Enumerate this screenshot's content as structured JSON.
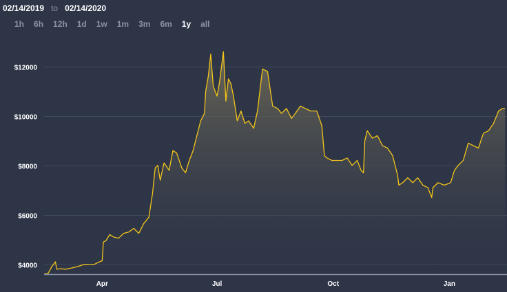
{
  "header": {
    "date_from": "02/14/2019",
    "date_sep": "to",
    "date_to": "02/14/2020"
  },
  "ranges": [
    {
      "label": "1h",
      "active": false
    },
    {
      "label": "6h",
      "active": false
    },
    {
      "label": "12h",
      "active": false
    },
    {
      "label": "1d",
      "active": false
    },
    {
      "label": "1w",
      "active": false
    },
    {
      "label": "1m",
      "active": false
    },
    {
      "label": "3m",
      "active": false
    },
    {
      "label": "6m",
      "active": false
    },
    {
      "label": "1y",
      "active": true
    },
    {
      "label": "all",
      "active": false
    }
  ],
  "colors": {
    "background": "#2d3547",
    "line": "#f5c518",
    "grid": "#414a5c",
    "baseline": "#8a92a3",
    "text": "#ffffff",
    "muted": "#8b93a5"
  },
  "chart_data": {
    "type": "area",
    "title": "",
    "xlabel": "",
    "ylabel": "",
    "grid": true,
    "ylim": [
      3600,
      12800
    ],
    "y_ticks": [
      {
        "value": 4000,
        "label": "$4000"
      },
      {
        "value": 6000,
        "label": "$6000"
      },
      {
        "value": 8000,
        "label": "$8000"
      },
      {
        "value": 10000,
        "label": "$10000"
      },
      {
        "value": 12000,
        "label": "$12000"
      }
    ],
    "x_ticks": [
      {
        "date": "2019-04-01",
        "label": "Apr"
      },
      {
        "date": "2019-07-01",
        "label": "Jul"
      },
      {
        "date": "2019-10-01",
        "label": "Oct"
      },
      {
        "date": "2020-01-01",
        "label": "Jan"
      }
    ],
    "series": [
      {
        "x": [
          "2019-02-14",
          "2019-02-17",
          "2019-02-19",
          "2019-02-20",
          "2019-02-23",
          "2019-02-24",
          "2019-02-27",
          "2019-03-03",
          "2019-03-07",
          "2019-03-12",
          "2019-03-17",
          "2019-03-22",
          "2019-03-26",
          "2019-03-30",
          "2019-04-01",
          "2019-04-02",
          "2019-04-04",
          "2019-04-07",
          "2019-04-10",
          "2019-04-14",
          "2019-04-18",
          "2019-04-22",
          "2019-04-26",
          "2019-04-30",
          "2019-05-04",
          "2019-05-08",
          "2019-05-11",
          "2019-05-13",
          "2019-05-15",
          "2019-05-17",
          "2019-05-20",
          "2019-05-24",
          "2019-05-27",
          "2019-05-30",
          "2019-06-03",
          "2019-06-06",
          "2019-06-09",
          "2019-06-12",
          "2019-06-15",
          "2019-06-18",
          "2019-06-21",
          "2019-06-22",
          "2019-06-24",
          "2019-06-26",
          "2019-06-28",
          "2019-07-01",
          "2019-07-03",
          "2019-07-06",
          "2019-07-08",
          "2019-07-10",
          "2019-07-12",
          "2019-07-14",
          "2019-07-17",
          "2019-07-20",
          "2019-07-23",
          "2019-07-26",
          "2019-07-30",
          "2019-08-02",
          "2019-08-06",
          "2019-08-10",
          "2019-08-14",
          "2019-08-18",
          "2019-08-21",
          "2019-08-25",
          "2019-08-29",
          "2019-09-01",
          "2019-09-05",
          "2019-09-09",
          "2019-09-13",
          "2019-09-18",
          "2019-09-22",
          "2019-09-24",
          "2019-09-26",
          "2019-09-30",
          "2019-10-04",
          "2019-10-08",
          "2019-10-12",
          "2019-10-16",
          "2019-10-20",
          "2019-10-23",
          "2019-10-25",
          "2019-10-26",
          "2019-10-28",
          "2019-11-01",
          "2019-11-05",
          "2019-11-09",
          "2019-11-13",
          "2019-11-17",
          "2019-11-21",
          "2019-11-22",
          "2019-11-25",
          "2019-11-29",
          "2019-12-03",
          "2019-12-07",
          "2019-12-11",
          "2019-12-15",
          "2019-12-18",
          "2019-12-19",
          "2019-12-23",
          "2019-12-28",
          "2020-01-02",
          "2020-01-05",
          "2020-01-08",
          "2020-01-12",
          "2020-01-16",
          "2020-01-20",
          "2020-01-24",
          "2020-01-28",
          "2020-02-01",
          "2020-02-05",
          "2020-02-09",
          "2020-02-12",
          "2020-02-14"
        ],
        "y": [
          3600,
          3620,
          3800,
          3900,
          4100,
          3800,
          3820,
          3800,
          3840,
          3900,
          3980,
          3990,
          4000,
          4100,
          4140,
          4900,
          4950,
          5200,
          5100,
          5050,
          5250,
          5300,
          5450,
          5250,
          5650,
          5900,
          6900,
          7900,
          8000,
          7400,
          8100,
          7800,
          8600,
          8500,
          7900,
          7700,
          8200,
          8600,
          9200,
          9800,
          10100,
          11000,
          11600,
          12500,
          11200,
          10800,
          11400,
          12600,
          10600,
          11500,
          11300,
          10800,
          9800,
          10200,
          9700,
          9800,
          9500,
          10200,
          11900,
          11800,
          10400,
          10300,
          10100,
          10300,
          9900,
          10100,
          10400,
          10300,
          10200,
          10200,
          9600,
          8400,
          8300,
          8200,
          8200,
          8200,
          8300,
          8000,
          8200,
          7800,
          7700,
          9000,
          9400,
          9100,
          9200,
          8800,
          8700,
          8400,
          7600,
          7200,
          7300,
          7500,
          7300,
          7500,
          7200,
          7100,
          6700,
          7100,
          7300,
          7200,
          7300,
          7800,
          8000,
          8200,
          8900,
          8800,
          8700,
          9300,
          9400,
          9700,
          10200,
          10300,
          10300
        ]
      }
    ]
  }
}
